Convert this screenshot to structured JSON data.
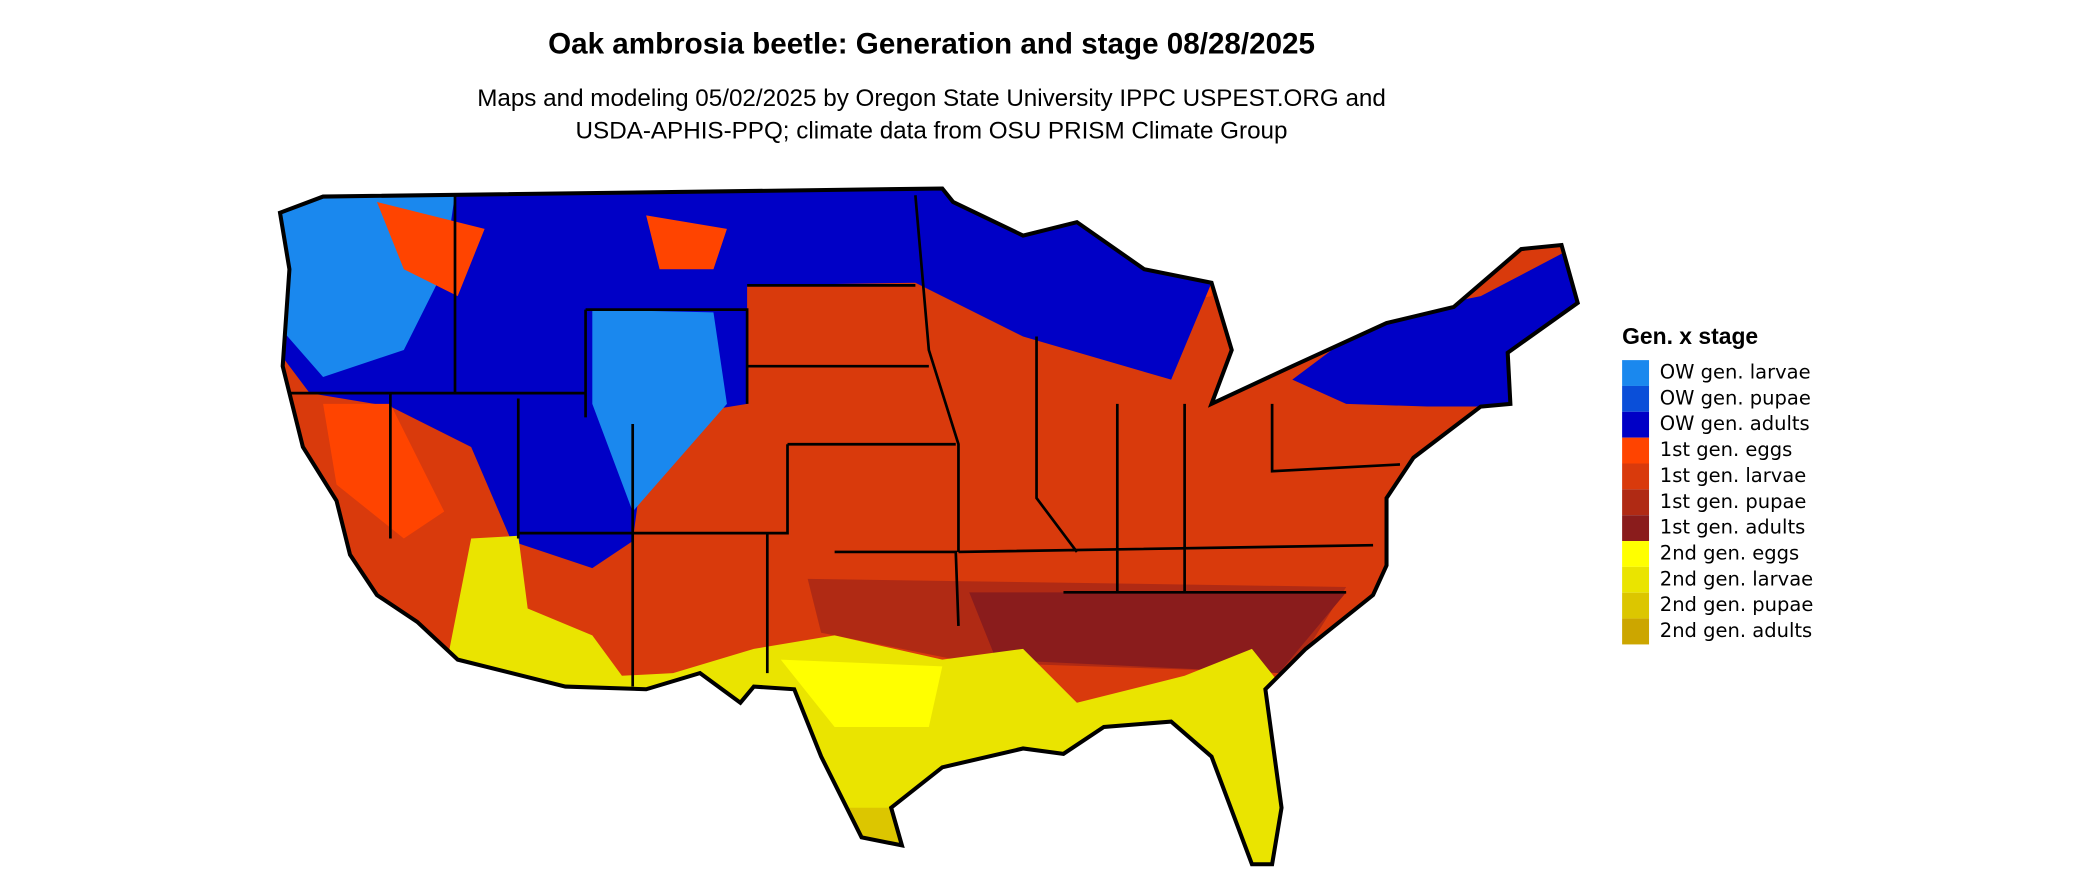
{
  "title": "Oak ambrosia beetle: Generation and stage 08/28/2025",
  "subtitle": [
    "Maps and modeling 05/02/2025 by Oregon State University IPPC USPEST.ORG and",
    "USDA-APHIS-PPQ; climate data from OSU PRISM Climate Group"
  ],
  "legend": {
    "title": "Gen. x stage",
    "items": [
      {
        "label": "OW gen. larvae",
        "color": "#1a88ee"
      },
      {
        "label": "OW gen. pupae",
        "color": "#0a4fd9"
      },
      {
        "label": "OW gen. adults",
        "color": "#0000c6"
      },
      {
        "label": "1st gen. eggs",
        "color": "#ff4400"
      },
      {
        "label": "1st gen. larvae",
        "color": "#d93a0c"
      },
      {
        "label": "1st gen. pupae",
        "color": "#b02a14"
      },
      {
        "label": "1st gen. adults",
        "color": "#8a1c1c"
      },
      {
        "label": "2nd gen. eggs",
        "color": "#ffff00"
      },
      {
        "label": "2nd gen. larvae",
        "color": "#eae400"
      },
      {
        "label": "2nd gen. pupae",
        "color": "#dcc600"
      },
      {
        "label": "2nd gen. adults",
        "color": "#cca600"
      }
    ]
  }
}
